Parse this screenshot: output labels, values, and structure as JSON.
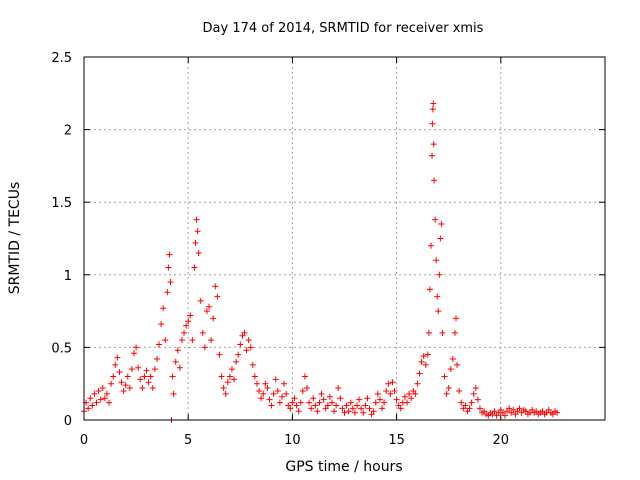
{
  "chart_data": {
    "type": "scatter",
    "title": "Day 174 of 2014, SRMTID for receiver xmis",
    "xlabel": "GPS time / hours",
    "ylabel": "SRMTID / TECUs",
    "xlim": [
      0,
      25
    ],
    "ylim": [
      0,
      2.5
    ],
    "grid": true,
    "marker": "plus",
    "color": "#ff0000",
    "x_ticks": [
      0,
      5,
      10,
      15,
      20
    ],
    "x_tick_labels": [
      "0",
      "5",
      "10",
      "15",
      "20"
    ],
    "y_ticks": [
      0,
      0.5,
      1,
      1.5,
      2,
      2.5
    ],
    "y_tick_labels": [
      "0",
      "0.5",
      "1",
      "1.5",
      "2",
      "2.5"
    ],
    "series": [
      {
        "name": "SRMTID",
        "points": [
          [
            0.0,
            0.06
          ],
          [
            0.1,
            0.12
          ],
          [
            0.2,
            0.08
          ],
          [
            0.3,
            0.15
          ],
          [
            0.4,
            0.1
          ],
          [
            0.5,
            0.18
          ],
          [
            0.6,
            0.12
          ],
          [
            0.7,
            0.2
          ],
          [
            0.8,
            0.14
          ],
          [
            0.9,
            0.22
          ],
          [
            1.0,
            0.15
          ],
          [
            1.1,
            0.18
          ],
          [
            1.2,
            0.12
          ],
          [
            1.3,
            0.25
          ],
          [
            1.4,
            0.3
          ],
          [
            1.5,
            0.38
          ],
          [
            1.6,
            0.43
          ],
          [
            1.7,
            0.33
          ],
          [
            1.8,
            0.26
          ],
          [
            1.9,
            0.2
          ],
          [
            2.0,
            0.24
          ],
          [
            2.1,
            0.3
          ],
          [
            2.2,
            0.22
          ],
          [
            2.3,
            0.35
          ],
          [
            2.4,
            0.46
          ],
          [
            2.5,
            0.5
          ],
          [
            2.6,
            0.36
          ],
          [
            2.7,
            0.28
          ],
          [
            2.8,
            0.22
          ],
          [
            2.9,
            0.3
          ],
          [
            3.0,
            0.34
          ],
          [
            3.1,
            0.26
          ],
          [
            3.2,
            0.3
          ],
          [
            3.3,
            0.22
          ],
          [
            3.4,
            0.35
          ],
          [
            3.5,
            0.42
          ],
          [
            3.6,
            0.52
          ],
          [
            3.7,
            0.66
          ],
          [
            3.8,
            0.77
          ],
          [
            3.9,
            0.55
          ],
          [
            4.0,
            0.88
          ],
          [
            4.05,
            1.05
          ],
          [
            4.1,
            1.14
          ],
          [
            4.15,
            0.95
          ],
          [
            4.2,
            0.0
          ],
          [
            4.25,
            0.3
          ],
          [
            4.3,
            0.18
          ],
          [
            4.4,
            0.4
          ],
          [
            4.5,
            0.48
          ],
          [
            4.6,
            0.36
          ],
          [
            4.7,
            0.55
          ],
          [
            4.8,
            0.6
          ],
          [
            4.9,
            0.65
          ],
          [
            5.0,
            0.68
          ],
          [
            5.1,
            0.72
          ],
          [
            5.2,
            0.55
          ],
          [
            5.3,
            1.05
          ],
          [
            5.35,
            1.22
          ],
          [
            5.4,
            1.38
          ],
          [
            5.45,
            1.3
          ],
          [
            5.5,
            1.15
          ],
          [
            5.6,
            0.82
          ],
          [
            5.7,
            0.6
          ],
          [
            5.8,
            0.5
          ],
          [
            5.9,
            0.75
          ],
          [
            6.0,
            0.78
          ],
          [
            6.1,
            0.55
          ],
          [
            6.2,
            0.7
          ],
          [
            6.3,
            0.92
          ],
          [
            6.4,
            0.85
          ],
          [
            6.5,
            0.45
          ],
          [
            6.6,
            0.3
          ],
          [
            6.7,
            0.22
          ],
          [
            6.8,
            0.18
          ],
          [
            6.9,
            0.26
          ],
          [
            7.0,
            0.3
          ],
          [
            7.1,
            0.35
          ],
          [
            7.2,
            0.28
          ],
          [
            7.3,
            0.4
          ],
          [
            7.4,
            0.45
          ],
          [
            7.5,
            0.52
          ],
          [
            7.6,
            0.58
          ],
          [
            7.7,
            0.6
          ],
          [
            7.8,
            0.48
          ],
          [
            7.9,
            0.55
          ],
          [
            8.0,
            0.5
          ],
          [
            8.1,
            0.38
          ],
          [
            8.2,
            0.3
          ],
          [
            8.3,
            0.25
          ],
          [
            8.4,
            0.2
          ],
          [
            8.5,
            0.15
          ],
          [
            8.6,
            0.18
          ],
          [
            8.7,
            0.25
          ],
          [
            8.8,
            0.22
          ],
          [
            8.9,
            0.14
          ],
          [
            9.0,
            0.1
          ],
          [
            9.1,
            0.18
          ],
          [
            9.2,
            0.28
          ],
          [
            9.3,
            0.2
          ],
          [
            9.4,
            0.12
          ],
          [
            9.5,
            0.16
          ],
          [
            9.6,
            0.25
          ],
          [
            9.7,
            0.18
          ],
          [
            9.8,
            0.1
          ],
          [
            9.9,
            0.08
          ],
          [
            10.0,
            0.12
          ],
          [
            10.1,
            0.15
          ],
          [
            10.2,
            0.1
          ],
          [
            10.3,
            0.06
          ],
          [
            10.4,
            0.12
          ],
          [
            10.5,
            0.2
          ],
          [
            10.6,
            0.3
          ],
          [
            10.7,
            0.22
          ],
          [
            10.8,
            0.12
          ],
          [
            10.9,
            0.08
          ],
          [
            11.0,
            0.15
          ],
          [
            11.1,
            0.1
          ],
          [
            11.2,
            0.06
          ],
          [
            11.3,
            0.12
          ],
          [
            11.4,
            0.18
          ],
          [
            11.5,
            0.14
          ],
          [
            11.6,
            0.08
          ],
          [
            11.7,
            0.1
          ],
          [
            11.8,
            0.16
          ],
          [
            11.9,
            0.12
          ],
          [
            12.0,
            0.06
          ],
          [
            12.1,
            0.1
          ],
          [
            12.2,
            0.22
          ],
          [
            12.3,
            0.15
          ],
          [
            12.4,
            0.08
          ],
          [
            12.5,
            0.05
          ],
          [
            12.6,
            0.1
          ],
          [
            12.7,
            0.06
          ],
          [
            12.8,
            0.12
          ],
          [
            12.9,
            0.08
          ],
          [
            13.0,
            0.05
          ],
          [
            13.1,
            0.1
          ],
          [
            13.2,
            0.14
          ],
          [
            13.3,
            0.08
          ],
          [
            13.4,
            0.05
          ],
          [
            13.5,
            0.1
          ],
          [
            13.6,
            0.15
          ],
          [
            13.7,
            0.08
          ],
          [
            13.8,
            0.04
          ],
          [
            13.9,
            0.06
          ],
          [
            14.0,
            0.12
          ],
          [
            14.1,
            0.18
          ],
          [
            14.2,
            0.14
          ],
          [
            14.3,
            0.08
          ],
          [
            14.4,
            0.12
          ],
          [
            14.5,
            0.2
          ],
          [
            14.6,
            0.25
          ],
          [
            14.7,
            0.18
          ],
          [
            14.8,
            0.26
          ],
          [
            14.9,
            0.2
          ],
          [
            15.0,
            0.14
          ],
          [
            15.1,
            0.1
          ],
          [
            15.2,
            0.08
          ],
          [
            15.3,
            0.12
          ],
          [
            15.4,
            0.16
          ],
          [
            15.5,
            0.12
          ],
          [
            15.6,
            0.18
          ],
          [
            15.7,
            0.15
          ],
          [
            15.8,
            0.2
          ],
          [
            15.9,
            0.18
          ],
          [
            16.0,
            0.25
          ],
          [
            16.1,
            0.32
          ],
          [
            16.2,
            0.4
          ],
          [
            16.3,
            0.44
          ],
          [
            16.4,
            0.38
          ],
          [
            16.5,
            0.45
          ],
          [
            16.55,
            0.6
          ],
          [
            16.6,
            0.9
          ],
          [
            16.65,
            1.2
          ],
          [
            16.7,
            1.82
          ],
          [
            16.72,
            2.04
          ],
          [
            16.74,
            2.14
          ],
          [
            16.76,
            2.18
          ],
          [
            16.78,
            1.9
          ],
          [
            16.8,
            1.65
          ],
          [
            16.85,
            1.38
          ],
          [
            16.9,
            1.1
          ],
          [
            16.95,
            0.85
          ],
          [
            17.0,
            0.75
          ],
          [
            17.05,
            1.0
          ],
          [
            17.1,
            1.25
          ],
          [
            17.15,
            1.35
          ],
          [
            17.2,
            0.6
          ],
          [
            17.3,
            0.3
          ],
          [
            17.4,
            0.18
          ],
          [
            17.5,
            0.22
          ],
          [
            17.6,
            0.35
          ],
          [
            17.7,
            0.42
          ],
          [
            17.8,
            0.6
          ],
          [
            17.85,
            0.7
          ],
          [
            17.9,
            0.38
          ],
          [
            18.0,
            0.2
          ],
          [
            18.1,
            0.12
          ],
          [
            18.2,
            0.08
          ],
          [
            18.3,
            0.1
          ],
          [
            18.4,
            0.06
          ],
          [
            18.5,
            0.08
          ],
          [
            18.6,
            0.12
          ],
          [
            18.7,
            0.18
          ],
          [
            18.8,
            0.22
          ],
          [
            18.9,
            0.14
          ],
          [
            19.0,
            0.08
          ],
          [
            19.1,
            0.05
          ],
          [
            19.2,
            0.06
          ],
          [
            19.3,
            0.04
          ],
          [
            19.4,
            0.03
          ],
          [
            19.5,
            0.05
          ],
          [
            19.6,
            0.04
          ],
          [
            19.7,
            0.06
          ],
          [
            19.8,
            0.03
          ],
          [
            19.9,
            0.05
          ],
          [
            20.0,
            0.07
          ],
          [
            20.1,
            0.05
          ],
          [
            20.2,
            0.03
          ],
          [
            20.3,
            0.06
          ],
          [
            20.4,
            0.08
          ],
          [
            20.5,
            0.05
          ],
          [
            20.6,
            0.07
          ],
          [
            20.7,
            0.04
          ],
          [
            20.8,
            0.06
          ],
          [
            20.9,
            0.08
          ],
          [
            21.0,
            0.05
          ],
          [
            21.1,
            0.07
          ],
          [
            21.2,
            0.06
          ],
          [
            21.3,
            0.04
          ],
          [
            21.4,
            0.05
          ],
          [
            21.5,
            0.07
          ],
          [
            21.6,
            0.05
          ],
          [
            21.7,
            0.06
          ],
          [
            21.8,
            0.04
          ],
          [
            21.9,
            0.05
          ],
          [
            22.0,
            0.06
          ],
          [
            22.1,
            0.04
          ],
          [
            22.2,
            0.05
          ],
          [
            22.3,
            0.07
          ],
          [
            22.4,
            0.05
          ],
          [
            22.5,
            0.04
          ],
          [
            22.6,
            0.06
          ],
          [
            22.7,
            0.05
          ]
        ]
      }
    ]
  }
}
